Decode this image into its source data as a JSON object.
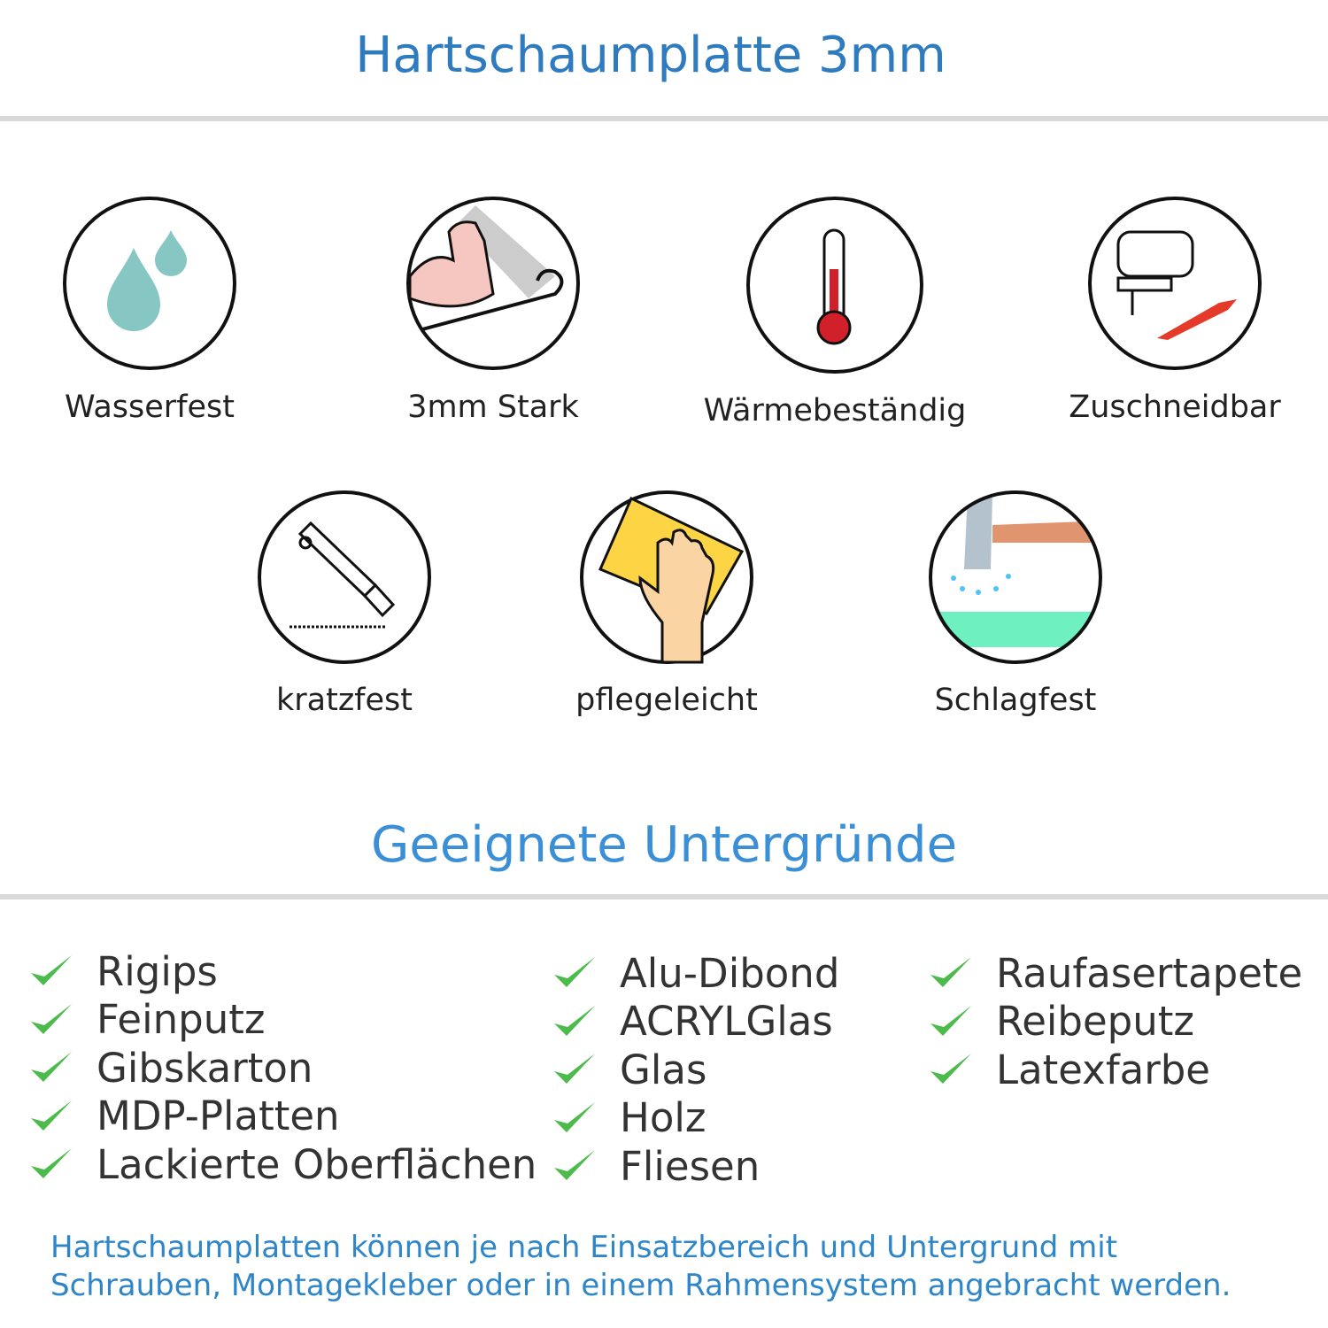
{
  "header": {
    "title": "Hartschaumplatte 3mm"
  },
  "features": [
    {
      "label": "Wasserfest",
      "icon": "water-drops-icon"
    },
    {
      "label": "3mm Stark",
      "icon": "strong-arm-icon"
    },
    {
      "label": "Wärmebeständig",
      "icon": "thermometer-icon"
    },
    {
      "label": "Zuschneidbar",
      "icon": "jigsaw-icon"
    },
    {
      "label": "kratzfest",
      "icon": "cutter-knife-icon"
    },
    {
      "label": "pflegeleicht",
      "icon": "cleaning-sponge-icon"
    },
    {
      "label": "Schlagfest",
      "icon": "hammer-icon"
    }
  ],
  "surfaces": {
    "title": "Geeignete Untergründe",
    "columns": [
      [
        "Rigips",
        "Feinputz",
        "Gibskarton",
        "MDP-Platten",
        "Lackierte Oberflächen"
      ],
      [
        "Alu-Dibond",
        "ACRYLGlas",
        "Glas",
        "Holz",
        "Fliesen"
      ],
      [
        "Raufasertapete",
        "Reibeputz",
        "Latexfarbe"
      ]
    ]
  },
  "footer": {
    "line1": "Hartschaumplatten können je nach Einsatzbereich und Untergrund mit",
    "line2": "Schrauben, Montagekleber oder in einem Rahmensystem angebracht werden."
  },
  "colors": {
    "title": "#2f7bbf",
    "subtitle": "#3a8fd6",
    "check": "#4cbb4c",
    "footer": "#2e86c9"
  }
}
